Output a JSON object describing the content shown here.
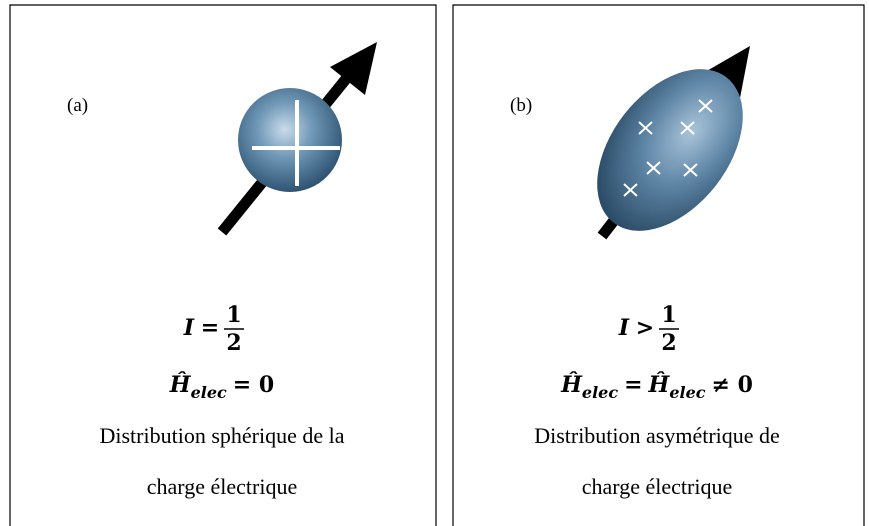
{
  "panels": [
    {
      "label": "(a)",
      "equation": {
        "lhs": "I",
        "op": "=",
        "numerator": "1",
        "denominator": "2"
      },
      "energy": [
        {
          "text": "Ĥ",
          "sub": "elec"
        },
        {
          "text": "= 0"
        }
      ],
      "description": [
        "Distribution  sphérique de la",
        "charge électrique"
      ]
    },
    {
      "label": "(b)",
      "equation": {
        "lhs": "I",
        "op": ">",
        "numerator": "1",
        "denominator": "2"
      },
      "energy": [
        {
          "text": "Ĥ",
          "sub": "elec"
        },
        {
          "text": "="
        },
        {
          "text": "Ĥ",
          "sub": "elec"
        },
        {
          "text": "≠ 0"
        }
      ],
      "description": [
        "Distribution  asymétrique de",
        "charge électrique"
      ]
    }
  ]
}
